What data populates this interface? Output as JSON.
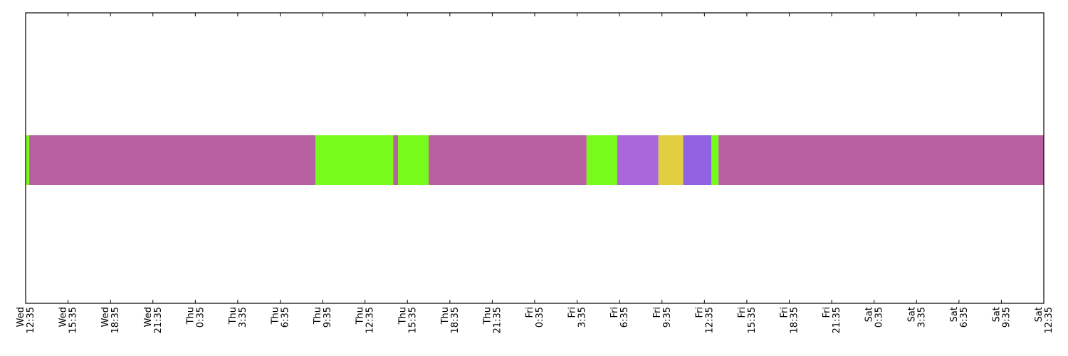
{
  "chart_data": {
    "type": "timeline",
    "title": "",
    "xlabel": "",
    "ylabel": "",
    "x_range": [
      "Wed 12:35",
      "Sat 12:35"
    ],
    "grid": false,
    "legend": "none",
    "x_ticks": [
      {
        "day": "Wed",
        "time": "12:35"
      },
      {
        "day": "Wed",
        "time": "15:35"
      },
      {
        "day": "Wed",
        "time": "18:35"
      },
      {
        "day": "Wed",
        "time": "21:35"
      },
      {
        "day": "Thu",
        "time": "0:35"
      },
      {
        "day": "Thu",
        "time": "3:35"
      },
      {
        "day": "Thu",
        "time": "6:35"
      },
      {
        "day": "Thu",
        "time": "9:35"
      },
      {
        "day": "Thu",
        "time": "12:35"
      },
      {
        "day": "Thu",
        "time": "15:35"
      },
      {
        "day": "Thu",
        "time": "18:35"
      },
      {
        "day": "Thu",
        "time": "21:35"
      },
      {
        "day": "Fri",
        "time": "0:35"
      },
      {
        "day": "Fri",
        "time": "3:35"
      },
      {
        "day": "Fri",
        "time": "6:35"
      },
      {
        "day": "Fri",
        "time": "9:35"
      },
      {
        "day": "Fri",
        "time": "12:35"
      },
      {
        "day": "Fri",
        "time": "15:35"
      },
      {
        "day": "Fri",
        "time": "18:35"
      },
      {
        "day": "Fri",
        "time": "21:35"
      },
      {
        "day": "Sat",
        "time": "0:35"
      },
      {
        "day": "Sat",
        "time": "3:35"
      },
      {
        "day": "Sat",
        "time": "6:35"
      },
      {
        "day": "Sat",
        "time": "9:35"
      },
      {
        "day": "Sat",
        "time": "12:35"
      }
    ],
    "segments": [
      {
        "start": "Wed 12:35",
        "end": "Wed 12:50",
        "color": "#77fb1b"
      },
      {
        "start": "Wed 12:50",
        "end": "Thu 9:05",
        "color": "#b960a3"
      },
      {
        "start": "Thu 9:05",
        "end": "Thu 14:35",
        "color": "#77fb1b"
      },
      {
        "start": "Thu 14:35",
        "end": "Thu 14:55",
        "color": "#b960a3"
      },
      {
        "start": "Thu 14:55",
        "end": "Thu 17:05",
        "color": "#77fb1b"
      },
      {
        "start": "Thu 17:05",
        "end": "Fri 4:15",
        "color": "#b960a3"
      },
      {
        "start": "Fri 4:15",
        "end": "Fri 6:25",
        "color": "#77fb1b"
      },
      {
        "start": "Fri 6:25",
        "end": "Fri 9:20",
        "color": "#a967da"
      },
      {
        "start": "Fri 9:20",
        "end": "Fri 11:05",
        "color": "#e2cf41"
      },
      {
        "start": "Fri 11:05",
        "end": "Fri 13:05",
        "color": "#9163e2"
      },
      {
        "start": "Fri 13:05",
        "end": "Fri 13:35",
        "color": "#77fb1b"
      },
      {
        "start": "Fri 13:35",
        "end": "Sat 12:35",
        "color": "#b960a3"
      }
    ]
  }
}
